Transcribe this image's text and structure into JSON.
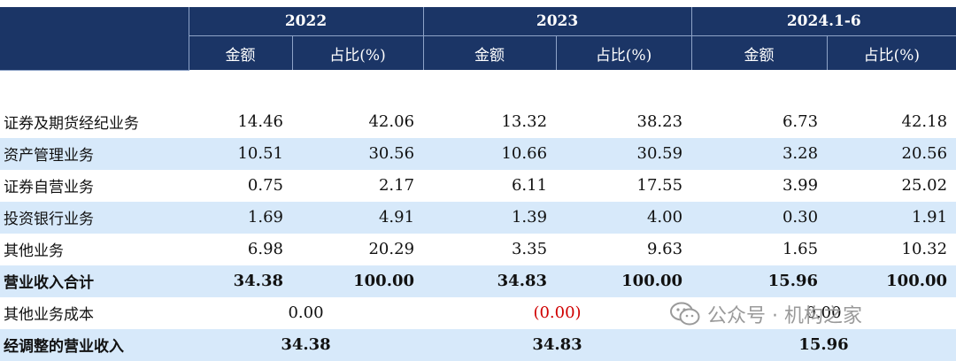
{
  "header": {
    "years": [
      "2022",
      "2023",
      "2024.1-6"
    ],
    "amount_label": "金额",
    "ratio_label": "占比(%)"
  },
  "rows": [
    {
      "label": "证券及期货经纪业务",
      "v": [
        "14.46",
        "42.06",
        "13.32",
        "38.23",
        "6.73",
        "42.18"
      ]
    },
    {
      "label": "资产管理业务",
      "v": [
        "10.51",
        "30.56",
        "10.66",
        "30.59",
        "3.28",
        "20.56"
      ]
    },
    {
      "label": "证券自营业务",
      "v": [
        "0.75",
        "2.17",
        "6.11",
        "17.55",
        "3.99",
        "25.02"
      ]
    },
    {
      "label": "投资银行业务",
      "v": [
        "1.69",
        "4.91",
        "1.39",
        "4.00",
        "0.30",
        "1.91"
      ]
    },
    {
      "label": "其他业务",
      "v": [
        "6.98",
        "20.29",
        "3.35",
        "9.63",
        "1.65",
        "10.32"
      ]
    },
    {
      "label": "营业收入合计",
      "v": [
        "34.38",
        "100.00",
        "34.83",
        "100.00",
        "15.96",
        "100.00"
      ]
    }
  ],
  "other_cost": {
    "label": "其他业务成本",
    "v": [
      "0.00",
      "(0.00)",
      "0.00"
    ]
  },
  "adjusted": {
    "label": "经调整的营业收入",
    "v": [
      "34.38",
      "34.83",
      "15.96"
    ]
  },
  "watermark": {
    "text": "公众号 · 机构之家",
    "icon": "wechat-icon"
  },
  "colors": {
    "header": "#1b3566",
    "stripe": "#d7e9fa",
    "negative": "#d00000"
  }
}
